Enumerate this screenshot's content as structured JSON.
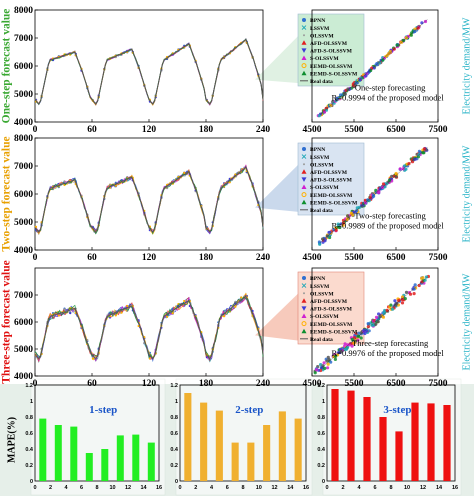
{
  "figure": {
    "colors": {
      "green": "#3aa832",
      "orange": "#e8a000",
      "red": "#e01010",
      "cyan": "#27b3c7",
      "bar_green": "#22ee22",
      "bar_orange": "#f0b030",
      "bar_red": "#ee1010",
      "panel_bg": "#e6efe9"
    },
    "left_ylabels": [
      "One-step forecast value",
      "Two-step forecast value",
      "Three-step forecast value"
    ],
    "right_ylabel": "Electricity demand/MW",
    "mape_ylabel": "MAPE(%)"
  },
  "chart_data": [
    {
      "type": "line",
      "panel": "one-step time series",
      "xlim": [
        0,
        240
      ],
      "ylim": [
        4000,
        8000
      ],
      "xticks": [
        "0",
        "60",
        "120",
        "180",
        "240"
      ],
      "yticks": [
        "4000",
        "5000",
        "6000",
        "7000",
        "8000"
      ],
      "series_names": [
        "BPNN",
        "LSSVM",
        "OLSSVM",
        "AFD-OLSSVM",
        "AFD-S-OLSSVM",
        "S-OLSSVM",
        "EEMD-OLSSVM",
        "EEMD-S-OLSSVM",
        "Real data"
      ]
    },
    {
      "type": "scatter",
      "panel": "one-step regression",
      "xlim": [
        4500,
        7500
      ],
      "ylim": [
        4500,
        7500
      ],
      "xticks": [
        "4500",
        "5500",
        "6500",
        "7500"
      ],
      "legend": [
        "BPNN",
        "LSSVM",
        "OLSSVM",
        "AFD-OLSSVM",
        "AFD-S-OLSSVM",
        "S-OLSSVM",
        "EEMD-OLSSVM",
        "EEMD-S-OLSSVM",
        "Real data"
      ],
      "annotation": [
        "One-step forecasting",
        "R=0.9994 of the proposed model"
      ],
      "r": 0.9994
    },
    {
      "type": "line",
      "panel": "two-step time series",
      "xlim": [
        0,
        240
      ],
      "ylim": [
        4000,
        8000
      ],
      "xticks": [
        "0",
        "60",
        "120",
        "180",
        "240"
      ],
      "yticks": [
        "4000",
        "5000",
        "6000",
        "7000",
        "8000"
      ]
    },
    {
      "type": "scatter",
      "panel": "two-step regression",
      "xlim": [
        4500,
        7500
      ],
      "ylim": [
        4500,
        7500
      ],
      "xticks": [
        "4500",
        "5500",
        "6500",
        "7500"
      ],
      "legend": [
        "BPNN",
        "LSSVM",
        "OLSSVM",
        "AFD-OLSSVM",
        "AFD-S-OLSSVM",
        "S-OLSSVM",
        "EEMD-OLSSVM",
        "EEMD-S-OLSSVM",
        "Real data"
      ],
      "annotation": [
        "Two-step forecasting",
        "R=0.9989 of the proposed model"
      ],
      "r": 0.9989
    },
    {
      "type": "line",
      "panel": "three-step time series",
      "xlim": [
        0,
        240
      ],
      "ylim": [
        4000,
        8000
      ],
      "xticks": [
        "0",
        "60",
        "120",
        "180",
        "240"
      ],
      "yticks": [
        "4000",
        "5000",
        "6000",
        "7000"
      ]
    },
    {
      "type": "scatter",
      "panel": "three-step regression",
      "xlim": [
        4500,
        7500
      ],
      "ylim": [
        4500,
        7500
      ],
      "xticks": [
        "4500",
        "5500",
        "6500",
        "7500"
      ],
      "legend": [
        "BPNN",
        "LSSVM",
        "OLSSVM",
        "AFD-OLSSVM",
        "AFD-S-OLSSVM",
        "S-OLSSVM",
        "EEMD-OLSSVM",
        "EEMD-S-OLSSVM",
        "Real data"
      ],
      "annotation": [
        "Three-step forecasting",
        "R=0.9976 of the proposed model"
      ],
      "r": 0.9976
    },
    {
      "type": "bar",
      "panel": "1-step MAPE",
      "title": "1-step",
      "x": [
        1,
        3,
        5,
        7,
        9,
        11,
        13,
        15
      ],
      "values": [
        0.78,
        0.7,
        0.68,
        0.35,
        0.4,
        0.57,
        0.58,
        0.48
      ],
      "ylim": [
        0,
        1.2
      ],
      "yticks": [
        "0",
        "0.2",
        "0.4",
        "0.6",
        "0.8",
        "1",
        "1.2"
      ],
      "xticks": [
        "0",
        "2",
        "4",
        "6",
        "8",
        "10",
        "12",
        "14",
        "16"
      ]
    },
    {
      "type": "bar",
      "panel": "2-step MAPE",
      "title": "2-step",
      "x": [
        1,
        3,
        5,
        7,
        9,
        11,
        13,
        15
      ],
      "values": [
        1.1,
        0.98,
        0.88,
        0.48,
        0.48,
        0.7,
        0.87,
        0.78
      ],
      "ylim": [
        0,
        1.2
      ],
      "yticks": [
        "0",
        "0.2",
        "0.4",
        "0.6",
        "0.8",
        "1",
        "1.2"
      ],
      "xticks": [
        "0",
        "2",
        "4",
        "6",
        "8",
        "10",
        "12",
        "14",
        "16"
      ]
    },
    {
      "type": "bar",
      "panel": "3-step MAPE",
      "title": "3-step",
      "x": [
        1,
        3,
        5,
        7,
        9,
        11,
        13,
        15
      ],
      "values": [
        1.15,
        1.13,
        1.05,
        0.8,
        0.62,
        0.98,
        0.97,
        0.95
      ],
      "ylim": [
        0,
        1.2
      ],
      "yticks": [
        "0",
        "0.2",
        "0.4",
        "0.6",
        "0.8",
        "1",
        "1.2"
      ],
      "xticks": [
        "0",
        "2",
        "4",
        "6",
        "8",
        "10",
        "12",
        "14",
        "16"
      ]
    }
  ]
}
